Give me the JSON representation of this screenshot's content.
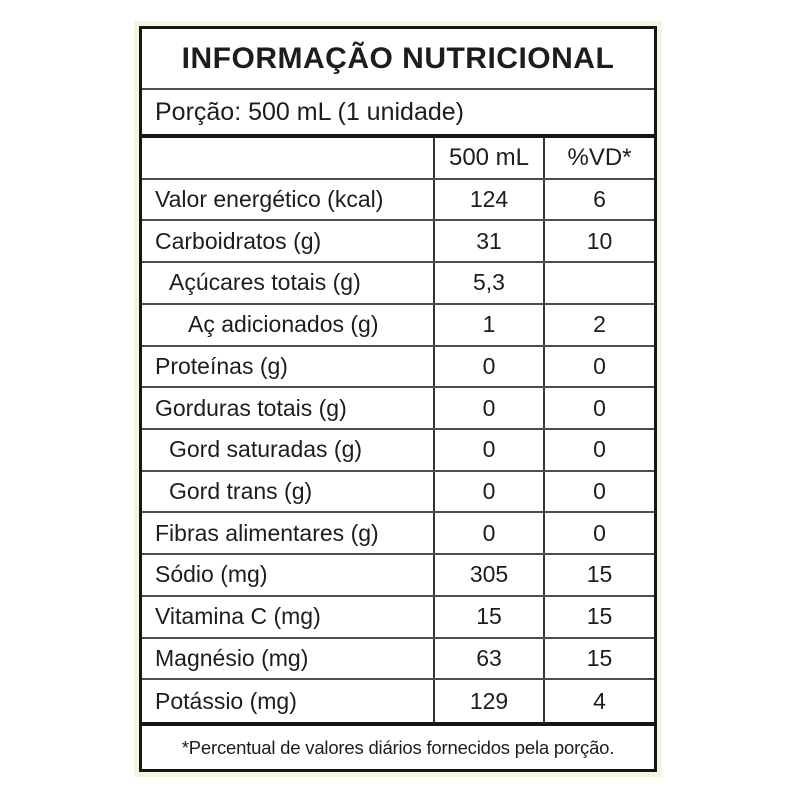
{
  "label": {
    "title": "INFORMAÇÃO NUTRICIONAL",
    "serving": "Porção: 500 mL (1 unidade)",
    "columns": {
      "nutrient": "",
      "amount": "500 mL",
      "dv": "%VD*"
    },
    "rows": [
      {
        "label": "Valor energético (kcal)",
        "amount": "124",
        "dv": "6",
        "indent": 0
      },
      {
        "label": "Carboidratos (g)",
        "amount": "31",
        "dv": "10",
        "indent": 0
      },
      {
        "label": "Açúcares totais (g)",
        "amount": "5,3",
        "dv": "",
        "indent": 1
      },
      {
        "label": "Aç adicionados (g)",
        "amount": "1",
        "dv": "2",
        "indent": 2
      },
      {
        "label": "Proteínas (g)",
        "amount": "0",
        "dv": "0",
        "indent": 0
      },
      {
        "label": "Gorduras totais (g)",
        "amount": "0",
        "dv": "0",
        "indent": 0
      },
      {
        "label": "Gord saturadas (g)",
        "amount": "0",
        "dv": "0",
        "indent": 1
      },
      {
        "label": "Gord trans (g)",
        "amount": "0",
        "dv": "0",
        "indent": 1
      },
      {
        "label": "Fibras alimentares (g)",
        "amount": "0",
        "dv": "0",
        "indent": 0
      },
      {
        "label": "Sódio (mg)",
        "amount": "305",
        "dv": "15",
        "indent": 0
      },
      {
        "label": "Vitamina C (mg)",
        "amount": "15",
        "dv": "15",
        "indent": 0
      },
      {
        "label": "Magnésio (mg)",
        "amount": "63",
        "dv": "15",
        "indent": 0
      },
      {
        "label": "Potássio (mg)",
        "amount": "129",
        "dv": "4",
        "indent": 0
      }
    ],
    "footnote": "*Percentual de valores diários fornecidos pela porção.",
    "colors": {
      "text": "#1d1d1d",
      "thick_line": "#161616",
      "thin_line": "#4d4d4d",
      "vertical_line": "#343434",
      "background": "#ffffff",
      "halo": "#f3f3d6"
    }
  }
}
